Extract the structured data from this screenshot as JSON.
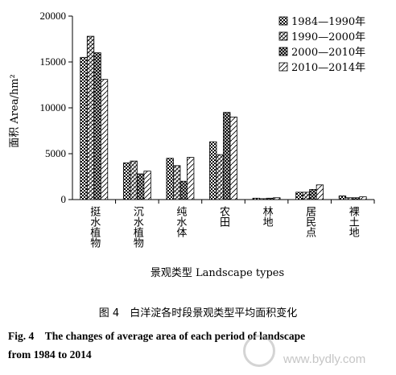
{
  "chart_data": {
    "type": "bar",
    "ylabel": "面积 Area/hm²",
    "xlabel": "景观类型 Landscape types",
    "ylim": [
      0,
      20000
    ],
    "yticks": [
      0,
      5000,
      10000,
      15000,
      20000
    ],
    "categories": [
      "挺水植物",
      "沉水植物",
      "纯水体",
      "农田",
      "林地",
      "居民点",
      "裸土地"
    ],
    "series": [
      {
        "name": "1984—1990年",
        "values": [
          15500,
          4000,
          4500,
          6300,
          150,
          800,
          400
        ]
      },
      {
        "name": "1990—2000年",
        "values": [
          17800,
          4200,
          3700,
          4900,
          100,
          800,
          200
        ]
      },
      {
        "name": "2000—2010年",
        "values": [
          16000,
          2800,
          2000,
          9500,
          150,
          1100,
          200
        ]
      },
      {
        "name": "2010—2014年",
        "values": [
          13100,
          3100,
          4600,
          9000,
          200,
          1600,
          300
        ]
      }
    ],
    "legend_position": "top-right"
  },
  "caption": {
    "cn": "图 4　白洋淀各时段景观类型平均面积变化",
    "en_line1": "Fig. 4　The changes of average area of each period of landscape",
    "en_line2": "from 1984 to 2014"
  },
  "watermark": "www.bydly.com"
}
